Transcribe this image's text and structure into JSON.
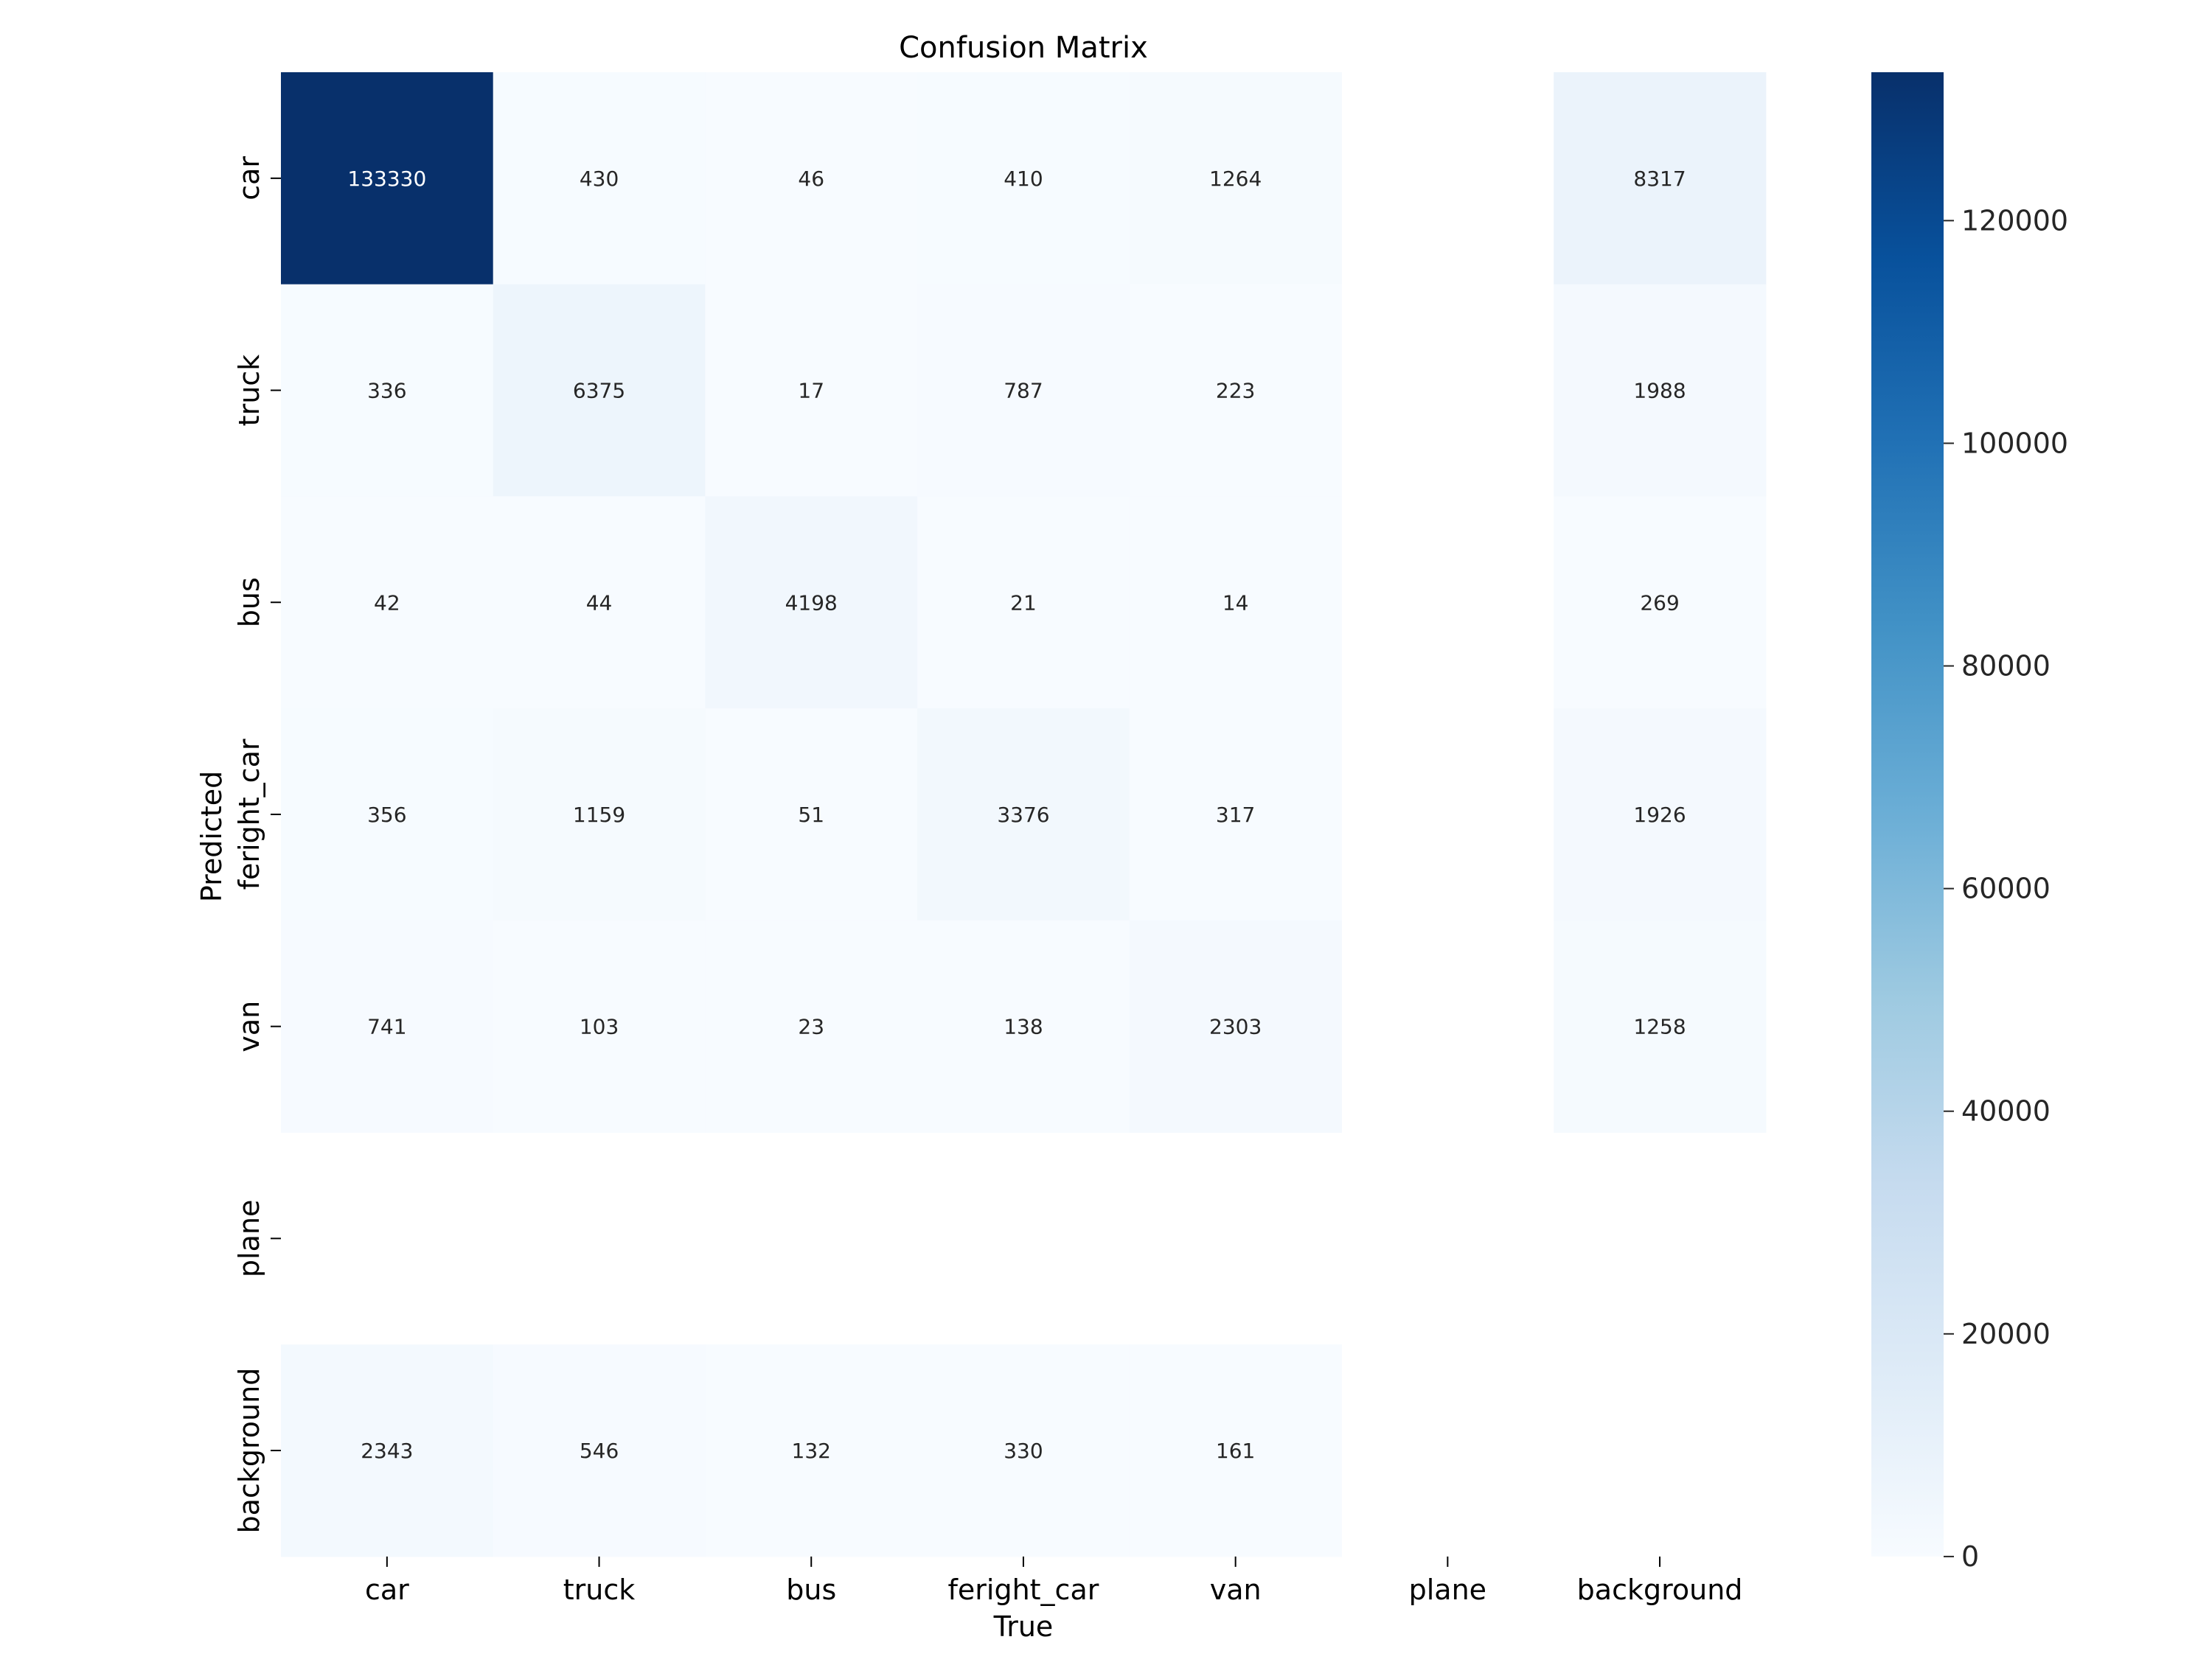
{
  "chart_data": {
    "type": "heatmap",
    "title": "Confusion Matrix",
    "xlabel": "True",
    "ylabel": "Predicted",
    "x_categories": [
      "car",
      "truck",
      "bus",
      "feright_car",
      "van",
      "plane",
      "background"
    ],
    "y_categories": [
      "car",
      "truck",
      "bus",
      "feright_car",
      "van",
      "plane",
      "background"
    ],
    "values": [
      [
        133330,
        430,
        46,
        410,
        1264,
        null,
        8317
      ],
      [
        336,
        6375,
        17,
        787,
        223,
        null,
        1988
      ],
      [
        42,
        44,
        4198,
        21,
        14,
        null,
        269
      ],
      [
        356,
        1159,
        51,
        3376,
        317,
        null,
        1926
      ],
      [
        741,
        103,
        23,
        138,
        2303,
        null,
        1258
      ],
      [
        null,
        null,
        null,
        null,
        null,
        null,
        null
      ],
      [
        2343,
        546,
        132,
        330,
        161,
        null,
        null
      ]
    ],
    "colormap": "Blues",
    "colorbar": {
      "min": 0,
      "max": 133330,
      "ticks": [
        0,
        20000,
        40000,
        60000,
        80000,
        100000,
        120000
      ]
    }
  }
}
